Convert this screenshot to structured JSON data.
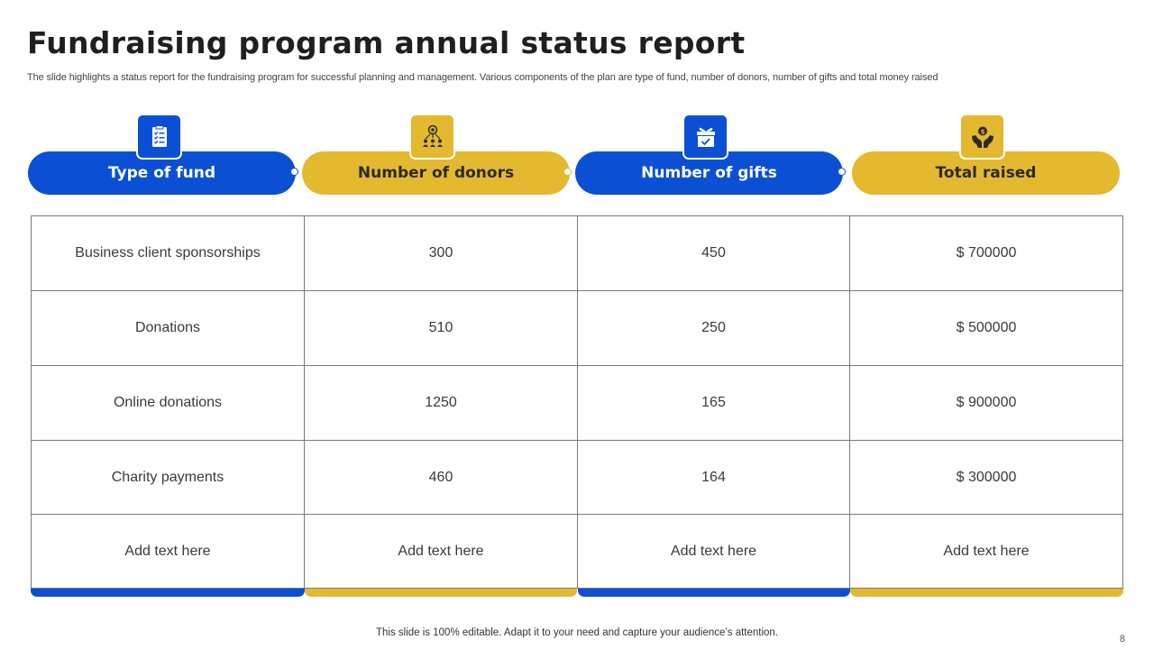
{
  "slide": {
    "title": "Fundraising program annual status report",
    "subtitle": "The slide highlights a status report for the fundraising program for successful planning and management. Various components of the plan are type of fund, number of donors, number of gifts and total money raised",
    "footer": "This slide is 100% editable. Adapt it to your need and capture your audience’s attention.",
    "page_number": "8"
  },
  "columns": [
    {
      "label": "Type of fund",
      "color": "#0b50d4",
      "icon": "clipboard-checklist-icon"
    },
    {
      "label": "Number of donors",
      "color": "#e4b92f",
      "icon": "donor-network-icon"
    },
    {
      "label": "Number of gifts",
      "color": "#0b50d4",
      "icon": "gift-box-icon"
    },
    {
      "label": "Total raised",
      "color": "#e4b92f",
      "icon": "hand-money-icon"
    }
  ],
  "rows": [
    [
      "Business client sponsorships",
      "300",
      "450",
      "$ 700000"
    ],
    [
      "Donations",
      "510",
      "250",
      "$ 500000"
    ],
    [
      "Online donations",
      "1250",
      "165",
      "$ 900000"
    ],
    [
      "Charity payments",
      "460",
      "164",
      "$ 300000"
    ],
    [
      "Add text here",
      "Add text here",
      "Add text here",
      "Add text here"
    ]
  ]
}
